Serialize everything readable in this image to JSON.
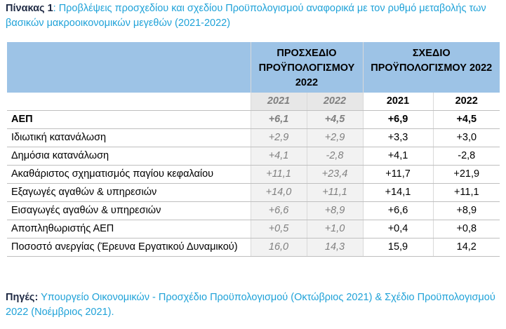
{
  "title": {
    "label": "Πίνακας 1",
    "text": ": Προβλέψεις προσχεδίου και σχεδίου Προϋπολογισμού αναφορικά με τον ρυθμό μεταβολής των βασικών μακροοικονομικών μεγεθών (2021-2022)"
  },
  "table": {
    "group_headers": [
      "ΠΡΟΣΧΕΔΙΟ ΠΡΟΫΠΟΛΟΓΙΣΜΟΥ 2022",
      "ΣΧΕΔΙΟ ΠΡΟΫΠΟΛΟΓΙΣΜΟΥ 2022"
    ],
    "years": [
      "2021",
      "2022",
      "2021",
      "2022"
    ],
    "rows": [
      [
        "ΑΕΠ",
        "+6,1",
        "+4,5",
        "+6,9",
        "+4,5"
      ],
      [
        "Ιδιωτική κατανάλωση",
        "+2,9",
        "+2,9",
        "+3,3",
        "+3,0"
      ],
      [
        "Δημόσια κατανάλωση",
        "+4,1",
        "-2,8",
        "+4,1",
        "-2,8"
      ],
      [
        "Ακαθάριστος σχηματισμός παγίου κεφαλαίου",
        "+11,1",
        "+23,4",
        "+11,7",
        "+21,9"
      ],
      [
        "Εξαγωγές αγαθών & υπηρεσιών",
        "+14,0",
        "+11,1",
        "+14,1",
        "+11,1"
      ],
      [
        "Εισαγωγές αγαθών & υπηρεσιών",
        "+6,6",
        "+8,9",
        "+6,6",
        "+8,9"
      ],
      [
        "Αποπληθωριστής ΑΕΠ",
        "+0,5",
        "+1,0",
        "+0,4",
        "+0,8"
      ],
      [
        "Ποσοστό ανεργίας (Έρευνα Εργατικού Δυναμικού)",
        "16,0",
        "14,3",
        "15,9",
        "14,2"
      ]
    ]
  },
  "source": {
    "label": "Πηγές:",
    "text": " Υπουργείο Οικονομικών - Προσχέδιο Προϋπολογισμού (Οκτώβριος 2021) & Σχέδιο Προϋπολογισμού 2022 (Νοέμβριος 2021)."
  }
}
